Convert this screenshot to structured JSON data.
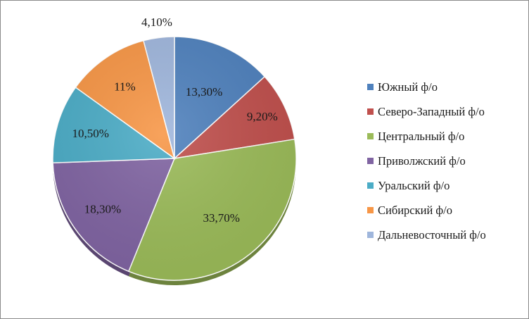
{
  "chart_data": {
    "type": "pie",
    "title": "",
    "slices": [
      {
        "label": "Южный ф/о",
        "value": 13.3,
        "display": "13,30%",
        "color": "#4f81bd"
      },
      {
        "label": "Северо-Западный ф/о",
        "value": 9.2,
        "display": "9,20%",
        "color": "#c0504d"
      },
      {
        "label": "Центральный ф/о",
        "value": 33.7,
        "display": "33,70%",
        "color": "#9bbb59"
      },
      {
        "label": "Приволжский ф/о",
        "value": 18.3,
        "display": "18,30%",
        "color": "#8064a2"
      },
      {
        "label": "Уральский ф/о",
        "value": 10.5,
        "display": "10,50%",
        "color": "#4bacc6"
      },
      {
        "label": "Сибирский ф/о",
        "value": 11,
        "display": "11%",
        "color": "#f79646"
      },
      {
        "label": "Дальневосточный ф/о",
        "value": 4.1,
        "display": "4,10%",
        "color": "#9fb6dc"
      }
    ],
    "start_angle": "12 o'clock",
    "direction": "clockwise",
    "legend_position": "right"
  }
}
